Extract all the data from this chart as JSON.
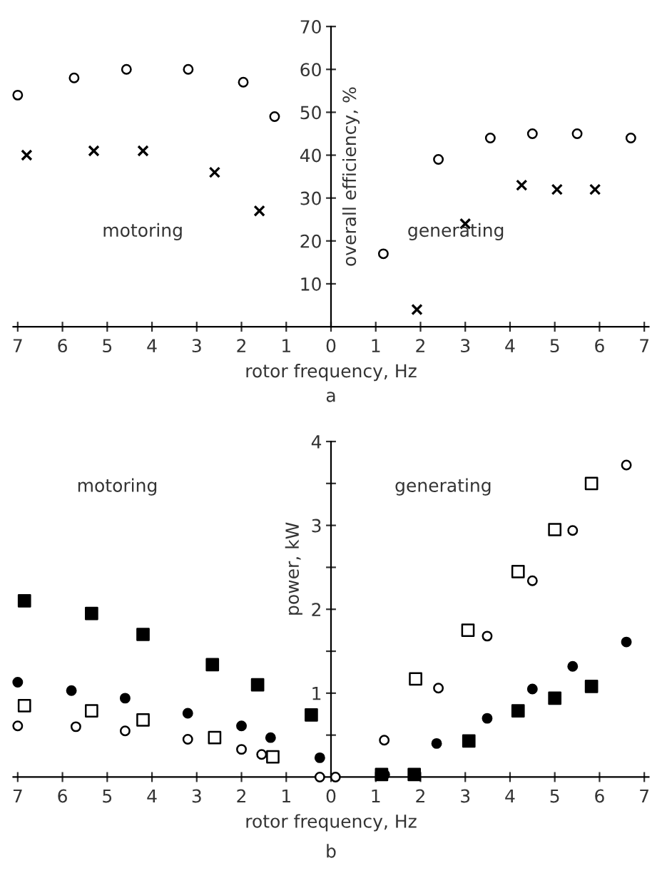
{
  "chart_data": [
    {
      "type": "scatter",
      "xlabel": "rotor frequency, Hz",
      "ylabel": "overall efficiency, %",
      "xlim": [
        -7.1,
        7.1
      ],
      "xticks": [
        {
          "value": -7,
          "label": "7"
        },
        {
          "value": -6,
          "label": "6"
        },
        {
          "value": -5,
          "label": "5"
        },
        {
          "value": -4,
          "label": "4"
        },
        {
          "value": -3,
          "label": "3"
        },
        {
          "value": -2,
          "label": "2"
        },
        {
          "value": -1,
          "label": "1"
        },
        0,
        1,
        2,
        3,
        4,
        5,
        6,
        7
      ],
      "ylim": [
        0,
        70
      ],
      "yticks": [
        10,
        20,
        30,
        40,
        50,
        60,
        70
      ],
      "grid": false,
      "legend": false,
      "annotations": [
        "motoring",
        "generating",
        "a"
      ],
      "series": [
        {
          "color": "#ffffff",
          "marker": "circle",
          "x": [
            -7.0,
            -5.74,
            -4.57,
            -3.19,
            -1.96,
            -1.26,
            1.17,
            2.4,
            3.56,
            4.5,
            5.5,
            6.7
          ],
          "values": [
            54,
            58,
            60,
            60,
            57,
            49,
            17,
            39,
            44,
            45,
            45,
            44
          ]
        },
        {
          "color": "#000000",
          "marker": "cross",
          "x": [
            -6.8,
            -5.3,
            -4.2,
            -2.6,
            -1.6,
            1.92,
            3.0,
            4.26,
            5.05,
            5.9
          ],
          "values": [
            40,
            41,
            41,
            36,
            27,
            4,
            24,
            33,
            32,
            32
          ]
        }
      ]
    },
    {
      "type": "scatter",
      "xlabel": "rotor frequency, Hz",
      "ylabel": "power, kW",
      "xlim": [
        -7.1,
        7.1
      ],
      "xticks": [
        {
          "value": -7,
          "label": "7"
        },
        {
          "value": -6,
          "label": "6"
        },
        {
          "value": -5,
          "label": "5"
        },
        {
          "value": -4,
          "label": "4"
        },
        {
          "value": -3,
          "label": "3"
        },
        {
          "value": -2,
          "label": "2"
        },
        {
          "value": -1,
          "label": "1"
        },
        0,
        1,
        2,
        3,
        4,
        5,
        6,
        7
      ],
      "ylim": [
        0,
        4
      ],
      "yticks": [
        {
          "value": 0.5,
          "label": null
        },
        1,
        {
          "value": 1.5,
          "label": null
        },
        2,
        {
          "value": 2.5,
          "label": null
        },
        3,
        {
          "value": 3.5,
          "label": null
        },
        4
      ],
      "grid": false,
      "legend": false,
      "annotations": [
        "motoring",
        "generating",
        "b"
      ],
      "series": [
        {
          "color": "#000000",
          "marker": "square",
          "x": [
            -6.85,
            -5.35,
            -4.2,
            -2.65,
            -1.64,
            -0.44,
            1.13,
            1.86,
            3.08,
            4.18,
            5.0,
            5.82
          ],
          "values": [
            2.1,
            1.95,
            1.7,
            1.34,
            1.1,
            0.74,
            0.03,
            0.03,
            0.43,
            0.79,
            0.94,
            1.08
          ]
        },
        {
          "color": "#000000",
          "marker": "circle",
          "x": [
            -7.0,
            -5.8,
            -4.6,
            -3.2,
            -2.0,
            -1.35,
            -0.25,
            1.2,
            1.9,
            2.36,
            3.49,
            4.5,
            5.4,
            6.6
          ],
          "values": [
            1.13,
            1.03,
            0.94,
            0.76,
            0.61,
            0.47,
            0.23,
            0.03,
            null,
            0.4,
            0.7,
            1.05,
            1.32,
            1.61
          ]
        },
        {
          "color": "#ffffff",
          "marker": "square",
          "x": [
            -6.85,
            -5.35,
            -4.2,
            -2.6,
            -1.3,
            1.89,
            3.06,
            4.18,
            5.0,
            5.82
          ],
          "values": [
            0.85,
            0.79,
            0.68,
            0.47,
            0.24,
            1.17,
            1.75,
            2.45,
            2.95,
            3.5
          ]
        },
        {
          "color": "#ffffff",
          "marker": "circle",
          "x": [
            -7.0,
            -5.7,
            -4.6,
            -3.2,
            -2.0,
            -1.55,
            -0.25,
            0.1,
            1.19,
            2.4,
            3.49,
            4.5,
            5.4,
            6.6
          ],
          "values": [
            0.61,
            0.6,
            0.55,
            0.45,
            0.33,
            0.27,
            0.0,
            0.0,
            0.44,
            1.06,
            1.68,
            2.34,
            2.94,
            3.72
          ]
        }
      ]
    }
  ]
}
